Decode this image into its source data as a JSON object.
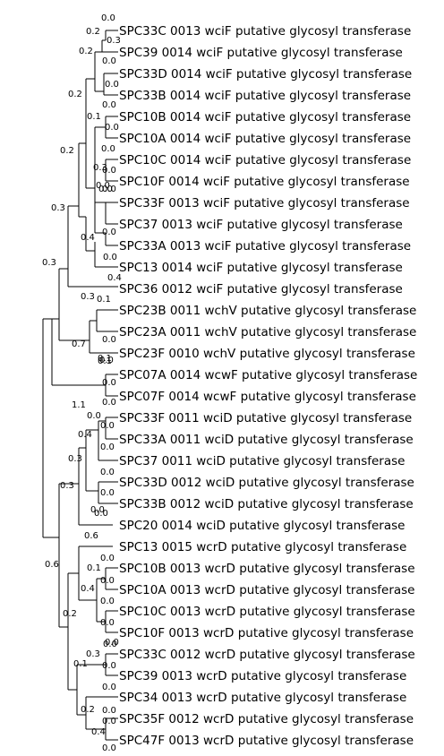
{
  "tree": {
    "leaves": [
      "SPC33C 0013 wciF putative glycosyl transferase",
      "SPC39 0014 wciF putative glycosyl transferase",
      "SPC33D 0014 wciF putative glycosyl transferase",
      "SPC33B 0014 wciF putative glycosyl transferase",
      "SPC10B 0014 wciF putative glycosyl transferase",
      "SPC10A 0014 wciF putative glycosyl transferase",
      "SPC10C 0014 wciF putative glycosyl transferase",
      "SPC10F 0014 wciF putative glycosyl transferase",
      "SPC33F 0013 wciF putative glycosyl transferase",
      "SPC37 0013 wciF putative glycosyl transferase",
      "SPC33A 0013 wciF putative glycosyl transferase",
      "SPC13 0014 wciF putative glycosyl transferase",
      "SPC36 0012 wciF putative glycosyl transferase",
      "SPC23B 0011 wchV putative glycosyl transferase",
      "SPC23A 0011 wchV putative glycosyl transferase",
      "SPC23F 0010 wchV putative glycosyl transferase",
      "SPC07A 0014 wcwF putative glycosyl transferase",
      "SPC07F 0014 wcwF putative glycosyl transferase",
      "SPC33F 0011 wciD putative glycosyl transferase",
      "SPC33A 0011 wciD putative glycosyl transferase",
      "SPC37 0011 wciD putative glycosyl transferase",
      "SPC33D 0012 wciD putative glycosyl transferase",
      "SPC33B 0012 wciD putative glycosyl transferase",
      "SPC20 0014 wciD putative glycosyl transferase",
      "SPC13 0015 wcrD putative glycosyl transferase",
      "SPC10B 0013 wcrD putative glycosyl transferase",
      "SPC10A 0013 wcrD putative glycosyl transferase",
      "SPC10C 0013 wcrD putative glycosyl transferase",
      "SPC10F 0013 wcrD putative glycosyl transferase",
      "SPC33C 0012 wcrD putative glycosyl transferase",
      "SPC39 0013 wcrD putative glycosyl transferase",
      "SPC34 0013 wcrD putative glycosyl transferase",
      "SPC35F 0012 wcrD putative glycosyl transferase",
      "SPC47F 0013 wcrD putative glycosyl transferase"
    ],
    "branch_labels": [
      "0.0",
      "0.2",
      "0.3",
      "0.2",
      "0.0",
      "0.0",
      "0.2",
      "0.1",
      "0.0",
      "0.0",
      "0.0",
      "0.3",
      "0.0",
      "0.0",
      "0.2",
      "0.0",
      "0.0",
      "0.4",
      "0.0",
      "0.0",
      "0.3",
      "0.4",
      "0.3",
      "0.1",
      "0.0",
      "0.7",
      "0.0",
      "0.1",
      "0.0",
      "0.0",
      "0.1",
      "1.1",
      "0.0",
      "0.4",
      "0.0",
      "0.0",
      "0.3",
      "0.0",
      "0.0",
      "0.3",
      "0.0",
      "0.0",
      "0.3",
      "0.6",
      "0.0",
      "0.1",
      "0.0",
      "0.6",
      "0.4",
      "0.0",
      "0.0",
      "0.2",
      "0.0",
      "0.0",
      "0.3",
      "0.0",
      "0.1",
      "0.0",
      "0.0",
      "0.2",
      "0.0",
      "0.4",
      "0.0"
    ]
  }
}
